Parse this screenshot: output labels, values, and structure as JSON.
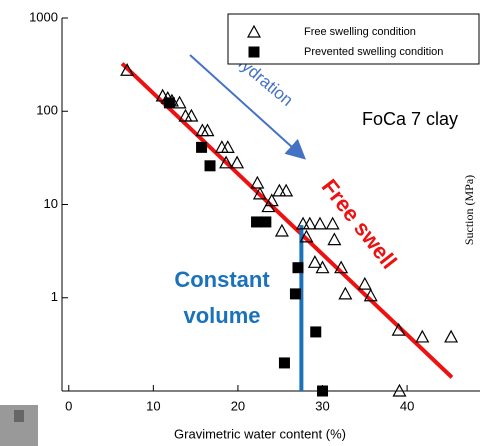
{
  "chart_data": {
    "type": "scatter",
    "xlabel": "Gravimetric water content (%)",
    "ylabel": "Suction (MPa)",
    "xlim": [
      -0.8,
      47.2
    ],
    "xticks": [
      0,
      10,
      20,
      30,
      40
    ],
    "ylim": [
      0.1,
      1000
    ],
    "yticks": [
      1,
      10,
      100,
      1000
    ],
    "log_y": true,
    "legend_position": "upper right",
    "series": [
      {
        "name": "Free swelling condition",
        "marker": "triangle",
        "color": "#000000",
        "x": [
          6.9,
          11.1,
          11.7,
          12.2,
          13.1,
          13.8,
          14.5,
          15.8,
          16.4,
          18.1,
          18.8,
          18.6,
          19.9,
          22.3,
          22.6,
          24.9,
          25.7,
          24.0,
          23.6,
          25.2,
          27.7,
          28.5,
          29.7,
          31.2,
          28.1,
          31.4,
          29.1,
          30.0,
          32.2,
          32.7,
          35.0,
          35.7,
          39.0,
          41.8,
          45.2,
          39.1
        ],
        "values": [
          275,
          146,
          138,
          129,
          123,
          89,
          89,
          62,
          62,
          41,
          41,
          28,
          28,
          17,
          13,
          14,
          14,
          11,
          9.5,
          5.2,
          6.2,
          6.2,
          6.2,
          6.2,
          4.5,
          4.2,
          2.4,
          2.1,
          2.1,
          1.1,
          1.4,
          1.05,
          0.45,
          0.38,
          0.38,
          0.1
        ]
      },
      {
        "name": "Prevented swelling condition",
        "marker": "square",
        "color": "#000000",
        "x": [
          11.9,
          15.7,
          16.7,
          22.2,
          23.3,
          27.1,
          26.8,
          29.2,
          25.5,
          30.0
        ],
        "values": [
          123,
          41,
          26,
          6.5,
          6.5,
          2.1,
          1.1,
          0.43,
          0.2,
          0.1
        ]
      }
    ],
    "lines": [
      {
        "x": [
          6.3,
          45.3
        ],
        "values": [
          325,
          0.14
        ],
        "color": "#ee1111"
      },
      {
        "x": [
          27.5,
          27.5
        ],
        "values": [
          6,
          0.1
        ],
        "color": "#1a72bb"
      }
    ],
    "annotations": {
      "hydration": "Hydration",
      "material": "FoCa 7 clay",
      "free_swell": "Free swell",
      "constant_volume": [
        "Constant",
        "volume"
      ]
    }
  }
}
